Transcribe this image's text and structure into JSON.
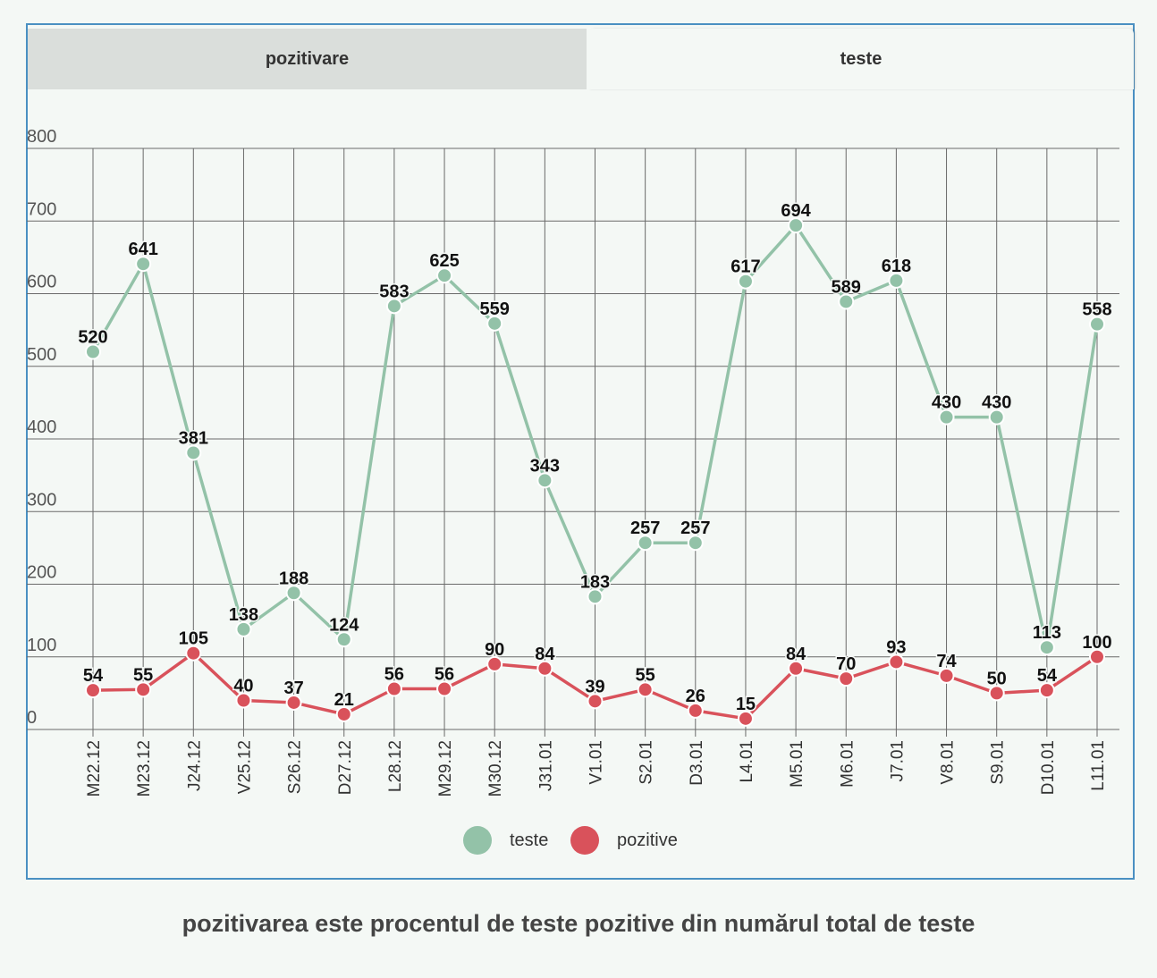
{
  "tabs": [
    {
      "label": "pozitivare",
      "active": false
    },
    {
      "label": "teste",
      "active": true
    }
  ],
  "caption": "pozitivarea este procentul de teste pozitive din numărul total de teste",
  "colors": {
    "teste": "#93c2a8",
    "pozitive": "#d9525b",
    "border": "#4a90c2"
  },
  "chart_data": {
    "type": "line",
    "title": "",
    "xlabel": "",
    "ylabel": "",
    "ylim": [
      0,
      800
    ],
    "yticks": [
      "0",
      "100",
      "200",
      "300",
      "400",
      "500",
      "600",
      "700",
      "800"
    ],
    "grid": true,
    "legend_position": "bottom-center",
    "categories": [
      "M22.12",
      "M23.12",
      "J24.12",
      "V25.12",
      "S26.12",
      "D27.12",
      "L28.12",
      "M29.12",
      "M30.12",
      "J31.01",
      "V1.01",
      "S2.01",
      "D3.01",
      "L4.01",
      "M5.01",
      "M6.01",
      "J7.01",
      "V8.01",
      "S9.01",
      "D10.01",
      "L11.01"
    ],
    "series": [
      {
        "name": "teste",
        "color": "#93c2a8",
        "values": [
          520,
          641,
          381,
          138,
          188,
          124,
          583,
          625,
          559,
          343,
          183,
          257,
          257,
          617,
          694,
          589,
          618,
          430,
          430,
          113,
          558
        ]
      },
      {
        "name": "pozitive",
        "color": "#d9525b",
        "values": [
          54,
          55,
          105,
          40,
          37,
          21,
          56,
          56,
          90,
          84,
          39,
          55,
          26,
          15,
          84,
          70,
          93,
          74,
          50,
          54,
          100
        ]
      }
    ]
  }
}
